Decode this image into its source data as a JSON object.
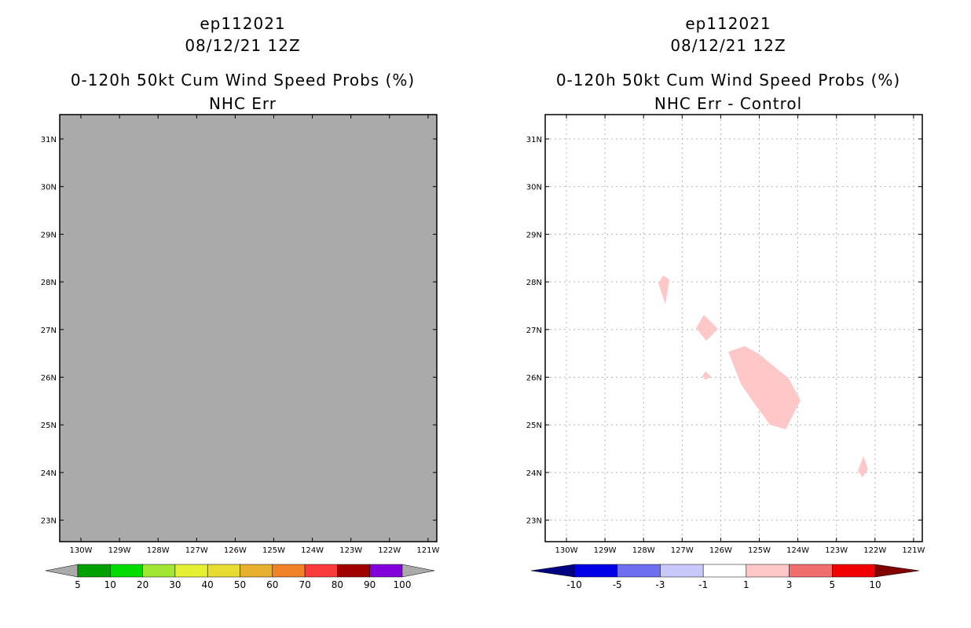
{
  "panels": [
    {
      "storm_id": "ep112021",
      "datetime": "08/12/21 12Z",
      "product": "0-120h 50kt Cum Wind Speed Probs (%)",
      "subtitle": "NHC Err",
      "fill_color": "#aaaaaa",
      "lat_labels": [
        "31N",
        "30N",
        "29N",
        "28N",
        "27N",
        "26N",
        "25N",
        "24N",
        "23N"
      ],
      "lon_labels": [
        "130W",
        "129W",
        "128W",
        "127W",
        "126W",
        "125W",
        "124W",
        "123W",
        "122W",
        "121W"
      ],
      "colorbar": {
        "colors": [
          "#00a000",
          "#00dc00",
          "#a0e632",
          "#e6f032",
          "#e6dc32",
          "#e6af2d",
          "#f08228",
          "#fa3c3c",
          "#a00000",
          "#8200dc"
        ],
        "end_color": "#aaaaaa",
        "labels": [
          "5",
          "10",
          "20",
          "30",
          "40",
          "50",
          "60",
          "70",
          "80",
          "90",
          "100"
        ]
      }
    },
    {
      "storm_id": "ep112021",
      "datetime": "08/12/21 12Z",
      "product": "0-120h 50kt Cum Wind Speed Probs (%)",
      "subtitle": "NHC Err - Control",
      "fill_color": "#ffffff",
      "anomaly_color": "#ffc8c8",
      "lat_labels": [
        "31N",
        "30N",
        "29N",
        "28N",
        "27N",
        "26N",
        "25N",
        "24N",
        "23N"
      ],
      "lon_labels": [
        "130W",
        "129W",
        "128W",
        "127W",
        "126W",
        "125W",
        "124W",
        "123W",
        "122W",
        "121W"
      ],
      "colorbar": {
        "colors": [
          "#0000e6",
          "#6e6ef0",
          "#c8c8fa",
          "#ffffff",
          "#ffc8c8",
          "#f06e6e",
          "#f00000"
        ],
        "low_end_color": "#000082",
        "high_end_color": "#820000",
        "labels": [
          "-10",
          "-5",
          "-3",
          "-1",
          "1",
          "3",
          "5",
          "10"
        ]
      }
    }
  ]
}
